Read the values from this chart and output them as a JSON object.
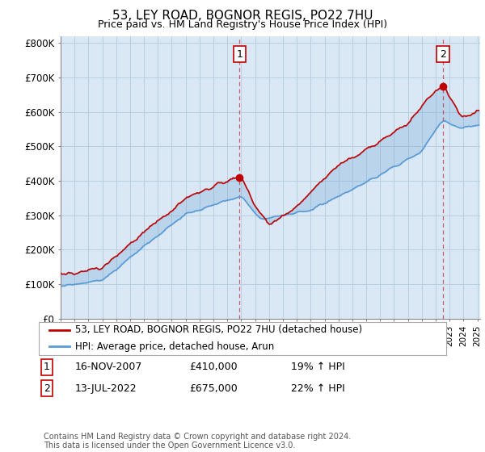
{
  "title": "53, LEY ROAD, BOGNOR REGIS, PO22 7HU",
  "subtitle": "Price paid vs. HM Land Registry's House Price Index (HPI)",
  "ylabel_ticks": [
    "£0",
    "£100K",
    "£200K",
    "£300K",
    "£400K",
    "£500K",
    "£600K",
    "£700K",
    "£800K"
  ],
  "ytick_values": [
    0,
    100000,
    200000,
    300000,
    400000,
    500000,
    600000,
    700000,
    800000
  ],
  "ylim": [
    0,
    820000
  ],
  "xlim_start": 1995.0,
  "xlim_end": 2025.2,
  "hpi_color": "#5b9bd5",
  "price_color": "#c00000",
  "fill_color": "#dae8f5",
  "marker1_x": 2007.88,
  "marker1_y": 410000,
  "marker2_x": 2022.53,
  "marker2_y": 675000,
  "vline1_x": 2007.88,
  "vline2_x": 2022.53,
  "legend_label1": "53, LEY ROAD, BOGNOR REGIS, PO22 7HU (detached house)",
  "legend_label2": "HPI: Average price, detached house, Arun",
  "note1_date": "16-NOV-2007",
  "note1_price": "£410,000",
  "note1_hpi": "19% ↑ HPI",
  "note2_date": "13-JUL-2022",
  "note2_price": "£675,000",
  "note2_hpi": "22% ↑ HPI",
  "footer": "Contains HM Land Registry data © Crown copyright and database right 2024.\nThis data is licensed under the Open Government Licence v3.0.",
  "background_color": "#ffffff",
  "plot_bg_color": "#dae8f5",
  "grid_color": "#b8cfe0"
}
